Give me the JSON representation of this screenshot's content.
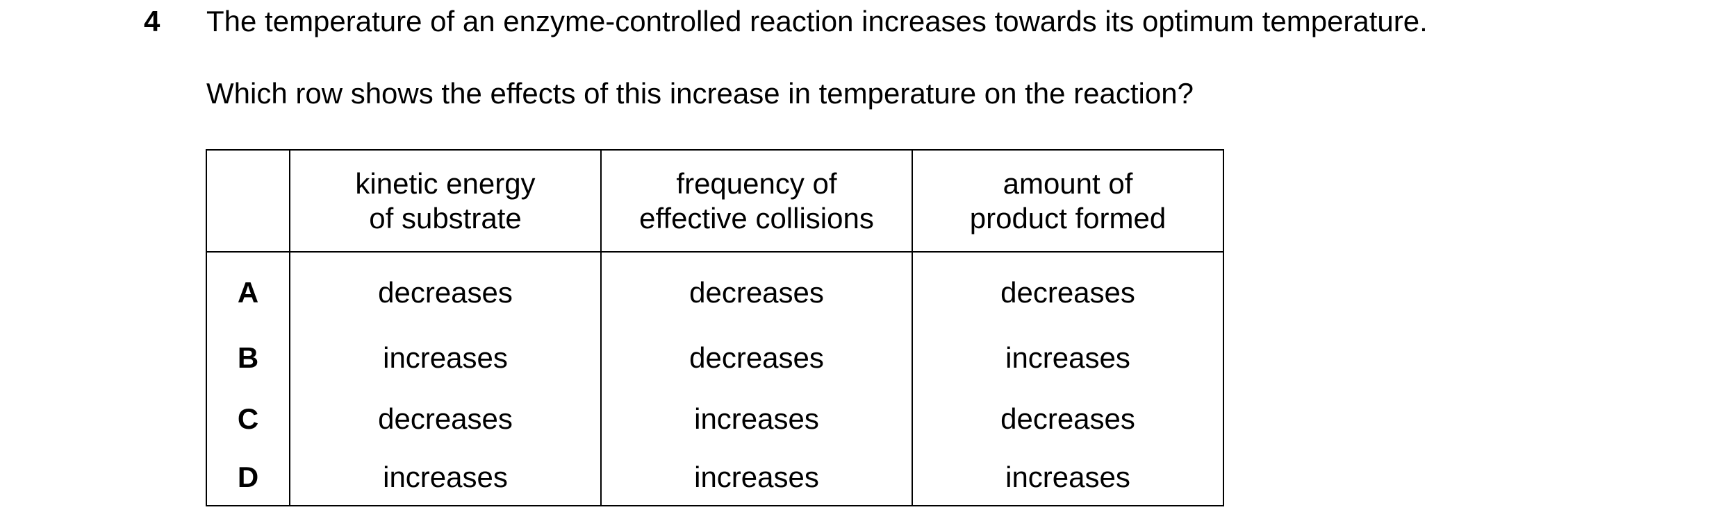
{
  "question": {
    "number": "4",
    "stem": "The temperature of an enzyme-controlled reaction increases towards its optimum temperature.",
    "prompt": "Which row shows the effects of this increase in temperature on the reaction?"
  },
  "table": {
    "headers": [
      {
        "line1": "kinetic energy",
        "line2": "of substrate"
      },
      {
        "line1": "frequency of",
        "line2": "effective collisions"
      },
      {
        "line1": "amount of",
        "line2": "product formed"
      }
    ],
    "rows": [
      {
        "letter": "A",
        "cells": [
          "decreases",
          "decreases",
          "decreases"
        ]
      },
      {
        "letter": "B",
        "cells": [
          "increases",
          "decreases",
          "increases"
        ]
      },
      {
        "letter": "C",
        "cells": [
          "decreases",
          "increases",
          "decreases"
        ]
      },
      {
        "letter": "D",
        "cells": [
          "increases",
          "increases",
          "increases"
        ]
      }
    ]
  }
}
